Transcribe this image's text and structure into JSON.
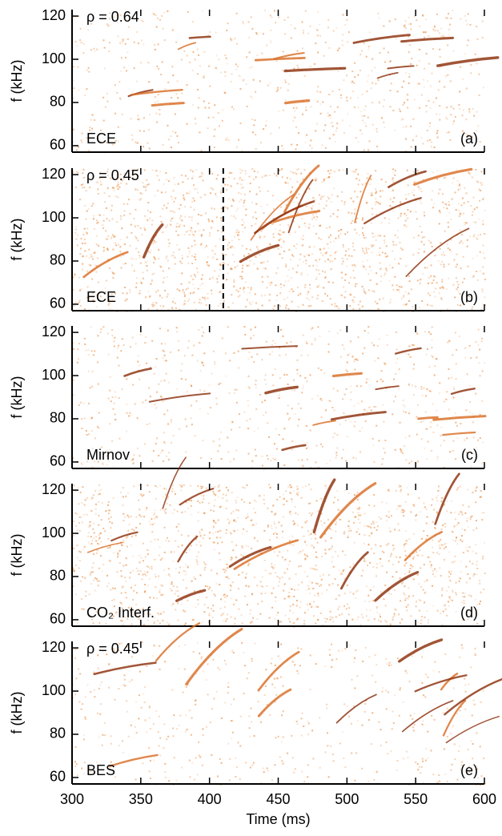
{
  "chart_data": [
    {
      "type": "spectrogram",
      "ylabel": "f (kHz)",
      "xlim": [
        300,
        600
      ],
      "ylim": [
        57,
        123
      ],
      "yticks": [
        60,
        80,
        100,
        120
      ],
      "xticks": [
        300,
        350,
        400,
        450,
        500,
        550,
        600
      ],
      "annotations": {
        "rho": "ρ = 0.64",
        "diagnostic": "ECE",
        "panel": "(a)"
      }
    },
    {
      "type": "spectrogram",
      "ylabel": "f (kHz)",
      "xlim": [
        300,
        600
      ],
      "ylim": [
        57,
        123
      ],
      "yticks": [
        60,
        80,
        100,
        120
      ],
      "xticks": [
        300,
        350,
        400,
        450,
        500,
        550,
        600
      ],
      "vline": 410,
      "annotations": {
        "rho": "ρ = 0.45",
        "diagnostic": "ECE",
        "panel": "(b)"
      }
    },
    {
      "type": "spectrogram",
      "ylabel": "f (kHz)",
      "xlim": [
        300,
        600
      ],
      "ylim": [
        57,
        123
      ],
      "yticks": [
        60,
        80,
        100,
        120
      ],
      "xticks": [
        300,
        350,
        400,
        450,
        500,
        550,
        600
      ],
      "annotations": {
        "diagnostic": "Mirnov",
        "panel": "(c)"
      }
    },
    {
      "type": "spectrogram",
      "ylabel": "f (kHz)",
      "xlim": [
        300,
        600
      ],
      "ylim": [
        57,
        123
      ],
      "yticks": [
        60,
        80,
        100,
        120
      ],
      "xticks": [
        300,
        350,
        400,
        450,
        500,
        550,
        600
      ],
      "annotations": {
        "diagnostic": "CO₂ Interf.",
        "panel": "(d)"
      }
    },
    {
      "type": "spectrogram",
      "ylabel": "f (kHz)",
      "xlabel": "Time (ms)",
      "xlim": [
        300,
        600
      ],
      "ylim": [
        57,
        123
      ],
      "yticks": [
        60,
        80,
        100,
        120
      ],
      "xticks": [
        300,
        350,
        400,
        450,
        500,
        550,
        600
      ],
      "annotations": {
        "rho": "ρ = 0.45",
        "diagnostic": "BES",
        "panel": "(e)"
      }
    }
  ]
}
